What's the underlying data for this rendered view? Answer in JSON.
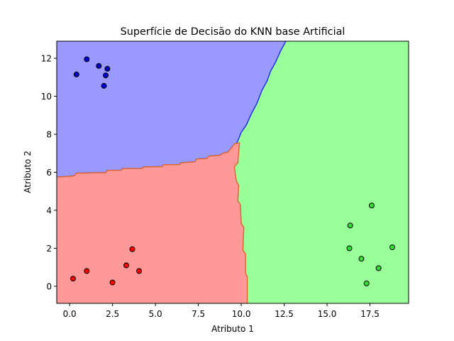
{
  "chart_data": {
    "type": "scatter",
    "title": "Superfície de Decisão do KNN base Artificial",
    "xlabel": "Atributo 1",
    "ylabel": "Atributo 2",
    "xlim": [
      -0.75,
      19.75
    ],
    "ylim": [
      -0.9,
      12.9
    ],
    "xticks": [
      0.0,
      2.5,
      5.0,
      7.5,
      10.0,
      12.5,
      15.0,
      17.5
    ],
    "xtick_labels": [
      "0.0",
      "2.5",
      "5.0",
      "7.5",
      "10.0",
      "12.5",
      "15.0",
      "17.5"
    ],
    "yticks": [
      0,
      2,
      4,
      6,
      8,
      10,
      12
    ],
    "ytick_labels": [
      "0",
      "2",
      "4",
      "6",
      "8",
      "10",
      "12"
    ],
    "grid": false,
    "regions": [
      {
        "class": "blue",
        "fill": "#9999ff",
        "edge": "#2233dd",
        "boundary": [
          [
            -0.75,
            5.75
          ],
          [
            0.25,
            5.8
          ],
          [
            0.4,
            5.95
          ],
          [
            2.1,
            5.98
          ],
          [
            2.2,
            6.1
          ],
          [
            3.0,
            6.1
          ],
          [
            3.1,
            6.2
          ],
          [
            4.2,
            6.2
          ],
          [
            4.3,
            6.28
          ],
          [
            5.4,
            6.3
          ],
          [
            5.5,
            6.4
          ],
          [
            6.4,
            6.4
          ],
          [
            6.5,
            6.5
          ],
          [
            7.3,
            6.55
          ],
          [
            7.4,
            6.7
          ],
          [
            8.0,
            6.72
          ],
          [
            8.1,
            6.85
          ],
          [
            8.8,
            6.9
          ],
          [
            8.9,
            7.0
          ],
          [
            9.2,
            7.05
          ],
          [
            9.4,
            7.25
          ],
          [
            9.75,
            7.55
          ],
          [
            10.0,
            8.1
          ],
          [
            10.3,
            8.5
          ],
          [
            10.6,
            9.1
          ],
          [
            10.9,
            9.6
          ],
          [
            11.2,
            10.3
          ],
          [
            11.5,
            10.8
          ],
          [
            11.7,
            11.3
          ],
          [
            12.0,
            11.8
          ],
          [
            12.3,
            12.4
          ],
          [
            12.6,
            12.9
          ]
        ],
        "closure": [
          [
            -0.75,
            12.9
          ]
        ]
      },
      {
        "class": "red",
        "fill": "#ff9999",
        "edge": "#dd6633",
        "boundary": [
          [
            -0.75,
            5.75
          ],
          [
            0.25,
            5.8
          ],
          [
            0.4,
            5.95
          ],
          [
            2.1,
            5.98
          ],
          [
            2.2,
            6.1
          ],
          [
            3.0,
            6.1
          ],
          [
            3.1,
            6.2
          ],
          [
            4.2,
            6.2
          ],
          [
            4.3,
            6.28
          ],
          [
            5.4,
            6.3
          ],
          [
            5.5,
            6.4
          ],
          [
            6.4,
            6.4
          ],
          [
            6.5,
            6.5
          ],
          [
            7.3,
            6.55
          ],
          [
            7.4,
            6.7
          ],
          [
            8.0,
            6.72
          ],
          [
            8.1,
            6.85
          ],
          [
            8.8,
            6.9
          ],
          [
            8.9,
            7.0
          ],
          [
            9.2,
            7.05
          ],
          [
            9.4,
            7.25
          ],
          [
            9.6,
            7.5
          ],
          [
            9.9,
            7.55
          ],
          [
            9.8,
            6.5
          ],
          [
            9.6,
            6.3
          ],
          [
            9.7,
            5.6
          ],
          [
            9.85,
            5.3
          ],
          [
            9.8,
            4.5
          ],
          [
            9.95,
            4.3
          ],
          [
            10.0,
            3.3
          ],
          [
            10.15,
            3.1
          ],
          [
            10.1,
            1.9
          ],
          [
            10.25,
            1.7
          ],
          [
            10.25,
            0.7
          ],
          [
            10.35,
            0.5
          ],
          [
            10.35,
            -0.9
          ]
        ],
        "closure": [
          [
            -0.75,
            -0.9
          ]
        ]
      },
      {
        "class": "green",
        "fill": "#99ff99",
        "edge": "#33aa33",
        "boundary": [],
        "closure": []
      }
    ],
    "series": [
      {
        "color": "#0000cc",
        "points": [
          [
            0.4,
            11.15
          ],
          [
            1.0,
            11.95
          ],
          [
            1.7,
            11.6
          ],
          [
            2.2,
            11.45
          ],
          [
            2.1,
            11.1
          ],
          [
            2.0,
            10.55
          ]
        ]
      },
      {
        "color": "#ff0000",
        "points": [
          [
            0.2,
            0.4
          ],
          [
            1.0,
            0.8
          ],
          [
            2.5,
            0.2
          ],
          [
            3.3,
            1.1
          ],
          [
            3.65,
            1.95
          ],
          [
            4.05,
            0.8
          ]
        ]
      },
      {
        "color": "#33dd33",
        "points": [
          [
            16.35,
            3.2
          ],
          [
            17.6,
            4.25
          ],
          [
            16.3,
            2.0
          ],
          [
            17.0,
            1.45
          ],
          [
            18.8,
            2.05
          ],
          [
            18.0,
            0.95
          ],
          [
            17.3,
            0.15
          ]
        ]
      }
    ]
  }
}
